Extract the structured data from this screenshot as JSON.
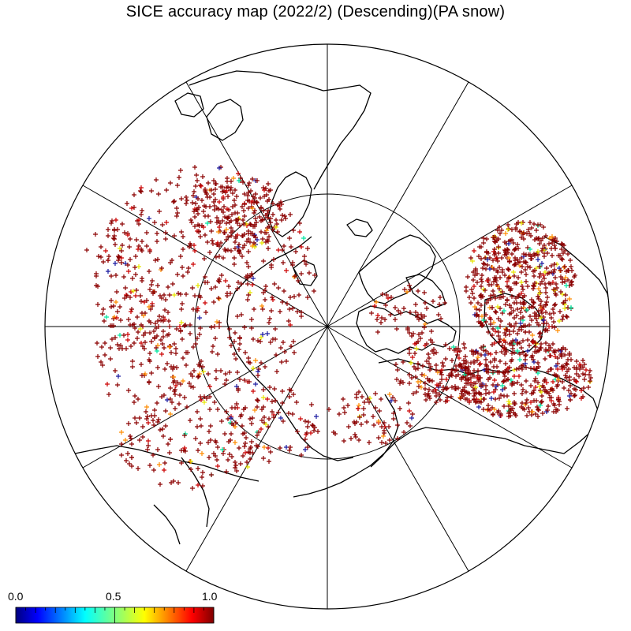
{
  "title": "SICE accuracy map (2022/2) (Descending)(PA snow)",
  "colorbar": {
    "min_label": "0.0",
    "mid_label": "0.5",
    "max_label": "1.0",
    "range": [
      0.0,
      1.0
    ],
    "colormap": "jet"
  },
  "map": {
    "projection": "north-polar-stereographic",
    "graticule_latitudes": [
      80,
      60
    ],
    "graticule_meridian_step_deg": 30,
    "boundary": "circle",
    "coastline_color": "#000000",
    "marker": "+"
  },
  "colors": {
    "dominant_marker": "#8b0000",
    "high": "#cc0000",
    "mid_high": "#ff8c00",
    "mid": "#e6e600",
    "mid_low": "#00e6a0",
    "low": "#1a1aa0"
  }
}
